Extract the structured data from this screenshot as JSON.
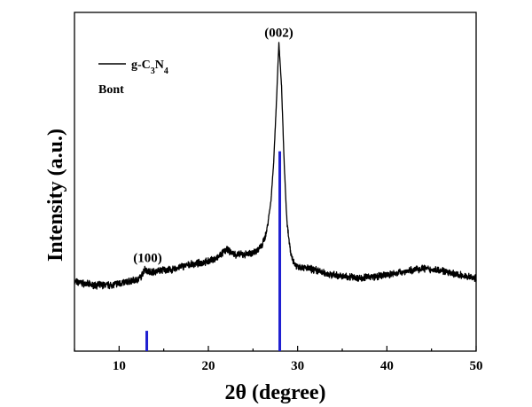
{
  "chart_data": {
    "type": "line",
    "xlabel": "2θ (degree)",
    "ylabel": "Intensity (a.u.)",
    "xlim": [
      5,
      50
    ],
    "ylim": [
      0,
      100
    ],
    "xticks": [
      10,
      20,
      30,
      40,
      50
    ],
    "yticks_shown": false,
    "legend_position": "top-left",
    "legend": [
      {
        "label_base": "g-C",
        "sub1": "3",
        "mid": "N",
        "sub2": "4",
        "color": "#000000",
        "style": "line"
      },
      {
        "label": "Bont",
        "color": "#1f1fd1",
        "style": "none"
      }
    ],
    "series": [
      {
        "name": "g-C3N4",
        "color": "#000000",
        "x": [
          5,
          7,
          9,
          11,
          12,
          12.5,
          12.9,
          13.2,
          14,
          15,
          16,
          17,
          18,
          19,
          20,
          21,
          22,
          23,
          24,
          25,
          25.5,
          26,
          26.5,
          27,
          27.3,
          27.6,
          27.9,
          28.2,
          28.5,
          28.8,
          29.2,
          29.6,
          30,
          31,
          32,
          33,
          34,
          35,
          36,
          37,
          38,
          39,
          40,
          41,
          42,
          43,
          44,
          45,
          46,
          47,
          48,
          49,
          50
        ],
        "y": [
          20.5,
          19.5,
          19.5,
          20.5,
          21,
          22,
          24.5,
          23.5,
          23.5,
          24,
          24,
          25,
          25.5,
          26,
          26.5,
          27.5,
          30,
          28.5,
          28.5,
          29,
          30,
          31,
          35,
          44,
          55,
          72,
          91,
          78,
          55,
          38,
          29,
          26,
          25,
          24.5,
          24,
          23,
          22.5,
          22,
          22,
          21.5,
          22,
          22,
          22.5,
          23,
          23.5,
          24,
          24.5,
          24,
          24,
          23,
          22.5,
          22,
          21.5
        ]
      },
      {
        "name": "Bont",
        "type": "stick",
        "color": "#1f1fd1",
        "x": [
          13.1,
          28.0
        ],
        "y": [
          6,
          59
        ]
      }
    ],
    "annotations": [
      {
        "text": "(100)",
        "x": 13.2,
        "y": 24.5
      },
      {
        "text": "(002)",
        "x": 27.9,
        "y": 91
      }
    ]
  }
}
